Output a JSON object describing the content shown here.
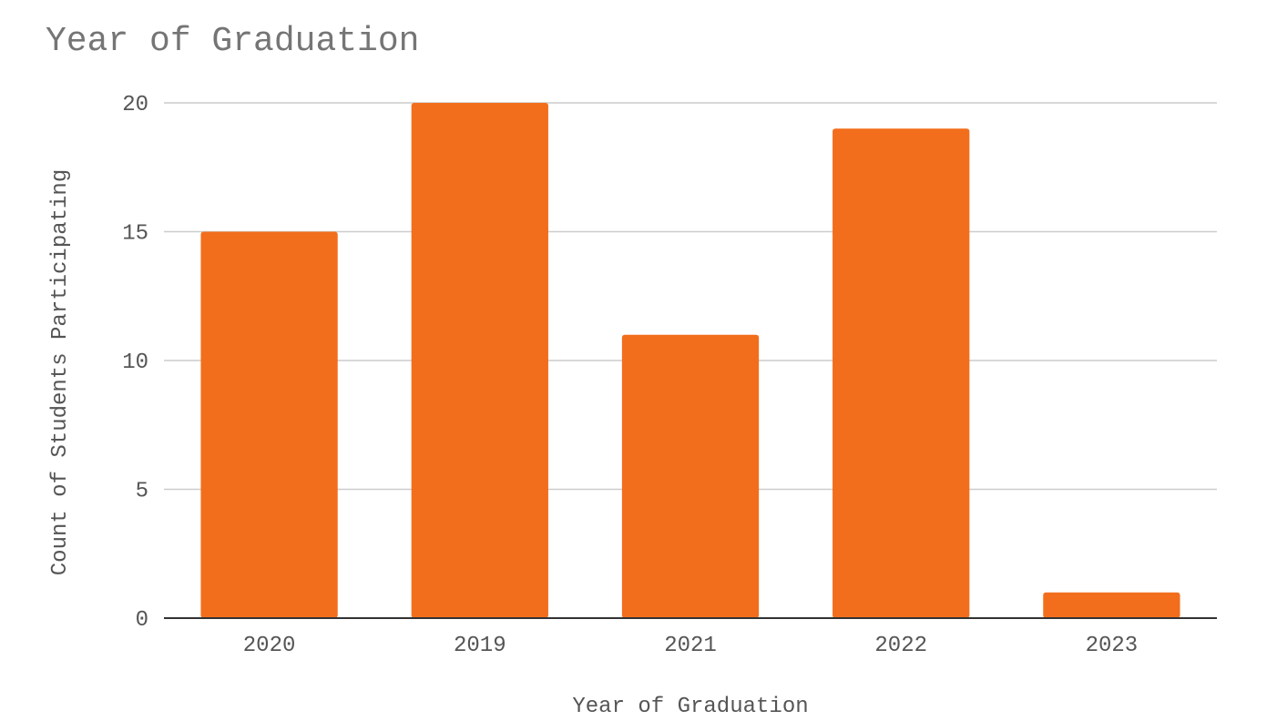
{
  "chart_data": {
    "type": "bar",
    "title": "Year of Graduation",
    "xlabel": "Year of Graduation",
    "ylabel": "Count of Students Participating",
    "categories": [
      "2020",
      "2019",
      "2021",
      "2022",
      "2023"
    ],
    "values": [
      15,
      20,
      11,
      19,
      1
    ],
    "ylim": [
      0,
      20
    ],
    "yticks": [
      0,
      5,
      10,
      15,
      20
    ],
    "grid": true,
    "bar_color": "#f26e1c"
  }
}
